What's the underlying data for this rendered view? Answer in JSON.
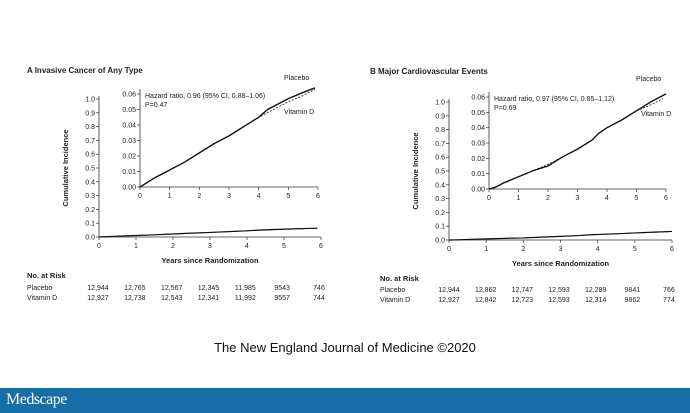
{
  "chart_data": [
    {
      "type": "line",
      "title": "A  Invasive Cancer of Any Type",
      "xlabel": "Years since Randomization",
      "ylabel": "Cumulative Incidence",
      "xlim": [
        0,
        6
      ],
      "ylim": [
        0,
        1.0
      ],
      "xticks": [
        "0",
        "1",
        "2",
        "3",
        "4",
        "5",
        "6"
      ],
      "yticks": [
        "0.0",
        "0.1",
        "0.2",
        "0.3",
        "0.4",
        "0.5",
        "0.6",
        "0.7",
        "0.8",
        "0.9",
        "1.0"
      ],
      "inset": {
        "xlim": [
          0,
          6
        ],
        "ylim": [
          0,
          0.06
        ],
        "yticks": [
          "0.00",
          "0.01",
          "0.02",
          "0.03",
          "0.04",
          "0.05",
          "0.06"
        ],
        "annotation": [
          "Hazard ratio, 0.96 (95% CI, 0.88–1.06)",
          "P=0.47"
        ]
      },
      "series": [
        {
          "name": "Placebo",
          "style": "solid",
          "x": [
            0,
            0.5,
            1,
            1.5,
            2,
            2.5,
            3,
            3.5,
            4,
            4.3,
            5,
            5.5,
            5.9
          ],
          "y": [
            0,
            0.006,
            0.011,
            0.016,
            0.022,
            0.028,
            0.033,
            0.039,
            0.045,
            0.05,
            0.057,
            0.061,
            0.064
          ]
        },
        {
          "name": "Vitamin D",
          "style": "dashed",
          "x": [
            0,
            0.5,
            1,
            1.5,
            2,
            2.5,
            3,
            3.5,
            4,
            4.3,
            5,
            5.5,
            5.9
          ],
          "y": [
            0,
            0.006,
            0.011,
            0.016,
            0.022,
            0.028,
            0.033,
            0.039,
            0.045,
            0.048,
            0.055,
            0.059,
            0.063
          ]
        }
      ],
      "risk_table": {
        "heading": "No. at Risk",
        "rows": [
          {
            "label": "Placebo",
            "values": [
              "12,944",
              "12,765",
              "12,567",
              "12,345",
              "11,985",
              "9543",
              "746"
            ]
          },
          {
            "label": "Vitamin D",
            "values": [
              "12,927",
              "12,738",
              "12,543",
              "12,341",
              "11,992",
              "9557",
              "744"
            ]
          }
        ]
      }
    },
    {
      "type": "line",
      "title": "B  Major Cardiovascular Events",
      "xlabel": "Years since Randomization",
      "ylabel": "Cumulative Incidence",
      "xlim": [
        0,
        6
      ],
      "ylim": [
        0,
        1.0
      ],
      "xticks": [
        "0",
        "1",
        "2",
        "3",
        "4",
        "5",
        "6"
      ],
      "yticks": [
        "0.0",
        "0.1",
        "0.2",
        "0.3",
        "0.4",
        "0.5",
        "0.6",
        "0.7",
        "0.8",
        "0.9",
        "1.0"
      ],
      "inset": {
        "xlim": [
          0,
          6
        ],
        "ylim": [
          0,
          0.06
        ],
        "yticks": [
          "0.00",
          "0.01",
          "0.02",
          "0.03",
          "0.04",
          "0.05",
          "0.06"
        ],
        "annotation": [
          "Hazard ratio, 0.97 (95% CI, 0.85–1.12)",
          "P=0.69"
        ]
      },
      "series": [
        {
          "name": "Placebo",
          "style": "solid",
          "x": [
            0,
            0.2,
            0.5,
            1,
            1.5,
            2,
            2.5,
            3,
            3.5,
            3.7,
            4,
            4.5,
            5,
            5.5,
            6
          ],
          "y": [
            0,
            0.001,
            0.004,
            0.008,
            0.012,
            0.015,
            0.021,
            0.026,
            0.032,
            0.036,
            0.04,
            0.045,
            0.051,
            0.057,
            0.062
          ]
        },
        {
          "name": "Vitamin D",
          "style": "dashed",
          "x": [
            0,
            0.2,
            0.5,
            1,
            1.5,
            2,
            2.5,
            3,
            3.5,
            3.7,
            4,
            4.5,
            5,
            5.5,
            5.9
          ],
          "y": [
            0,
            0.001,
            0.004,
            0.008,
            0.012,
            0.016,
            0.021,
            0.026,
            0.032,
            0.036,
            0.04,
            0.045,
            0.051,
            0.055,
            0.059
          ]
        }
      ],
      "risk_table": {
        "heading": "No. at Risk",
        "rows": [
          {
            "label": "Placebo",
            "values": [
              "12,944",
              "12,862",
              "12,747",
              "12,593",
              "12,289",
              "9841",
              "766"
            ]
          },
          {
            "label": "Vitamin D",
            "values": [
              "12,927",
              "12,842",
              "12,723",
              "12,593",
              "12,314",
              "9862",
              "774"
            ]
          }
        ]
      }
    }
  ],
  "footer": {
    "credit": "The New England Journal of Medicine ©2020"
  },
  "brand": {
    "name": "Medscape",
    "bar_color": "#176ea6"
  }
}
